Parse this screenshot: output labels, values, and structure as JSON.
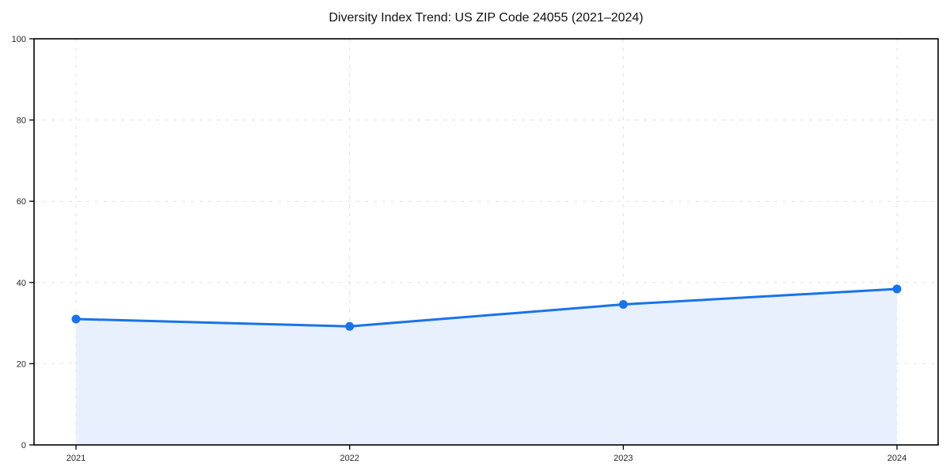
{
  "chart_data": {
    "type": "area",
    "title": "Diversity Index Trend: US ZIP Code 24055 (2021–2024)",
    "categories": [
      "2021",
      "2022",
      "2023",
      "2024"
    ],
    "values": [
      31.0,
      29.2,
      34.6,
      38.4
    ],
    "series_name": "Diversity Index",
    "xlabel": "",
    "ylabel": "",
    "ylim": [
      0,
      100
    ],
    "yticks": [
      0,
      20,
      40,
      60,
      80,
      100
    ],
    "grid": "dashed-both-axes",
    "legend": "none",
    "colors": {
      "line": "#1a73e8",
      "marker": "#1a73e8",
      "fill": "#e8f0fd",
      "grid": "#e0e0e0",
      "axis": "#000000",
      "tick_label": "#262626",
      "title": "#111111",
      "background": "#ffffff"
    }
  }
}
